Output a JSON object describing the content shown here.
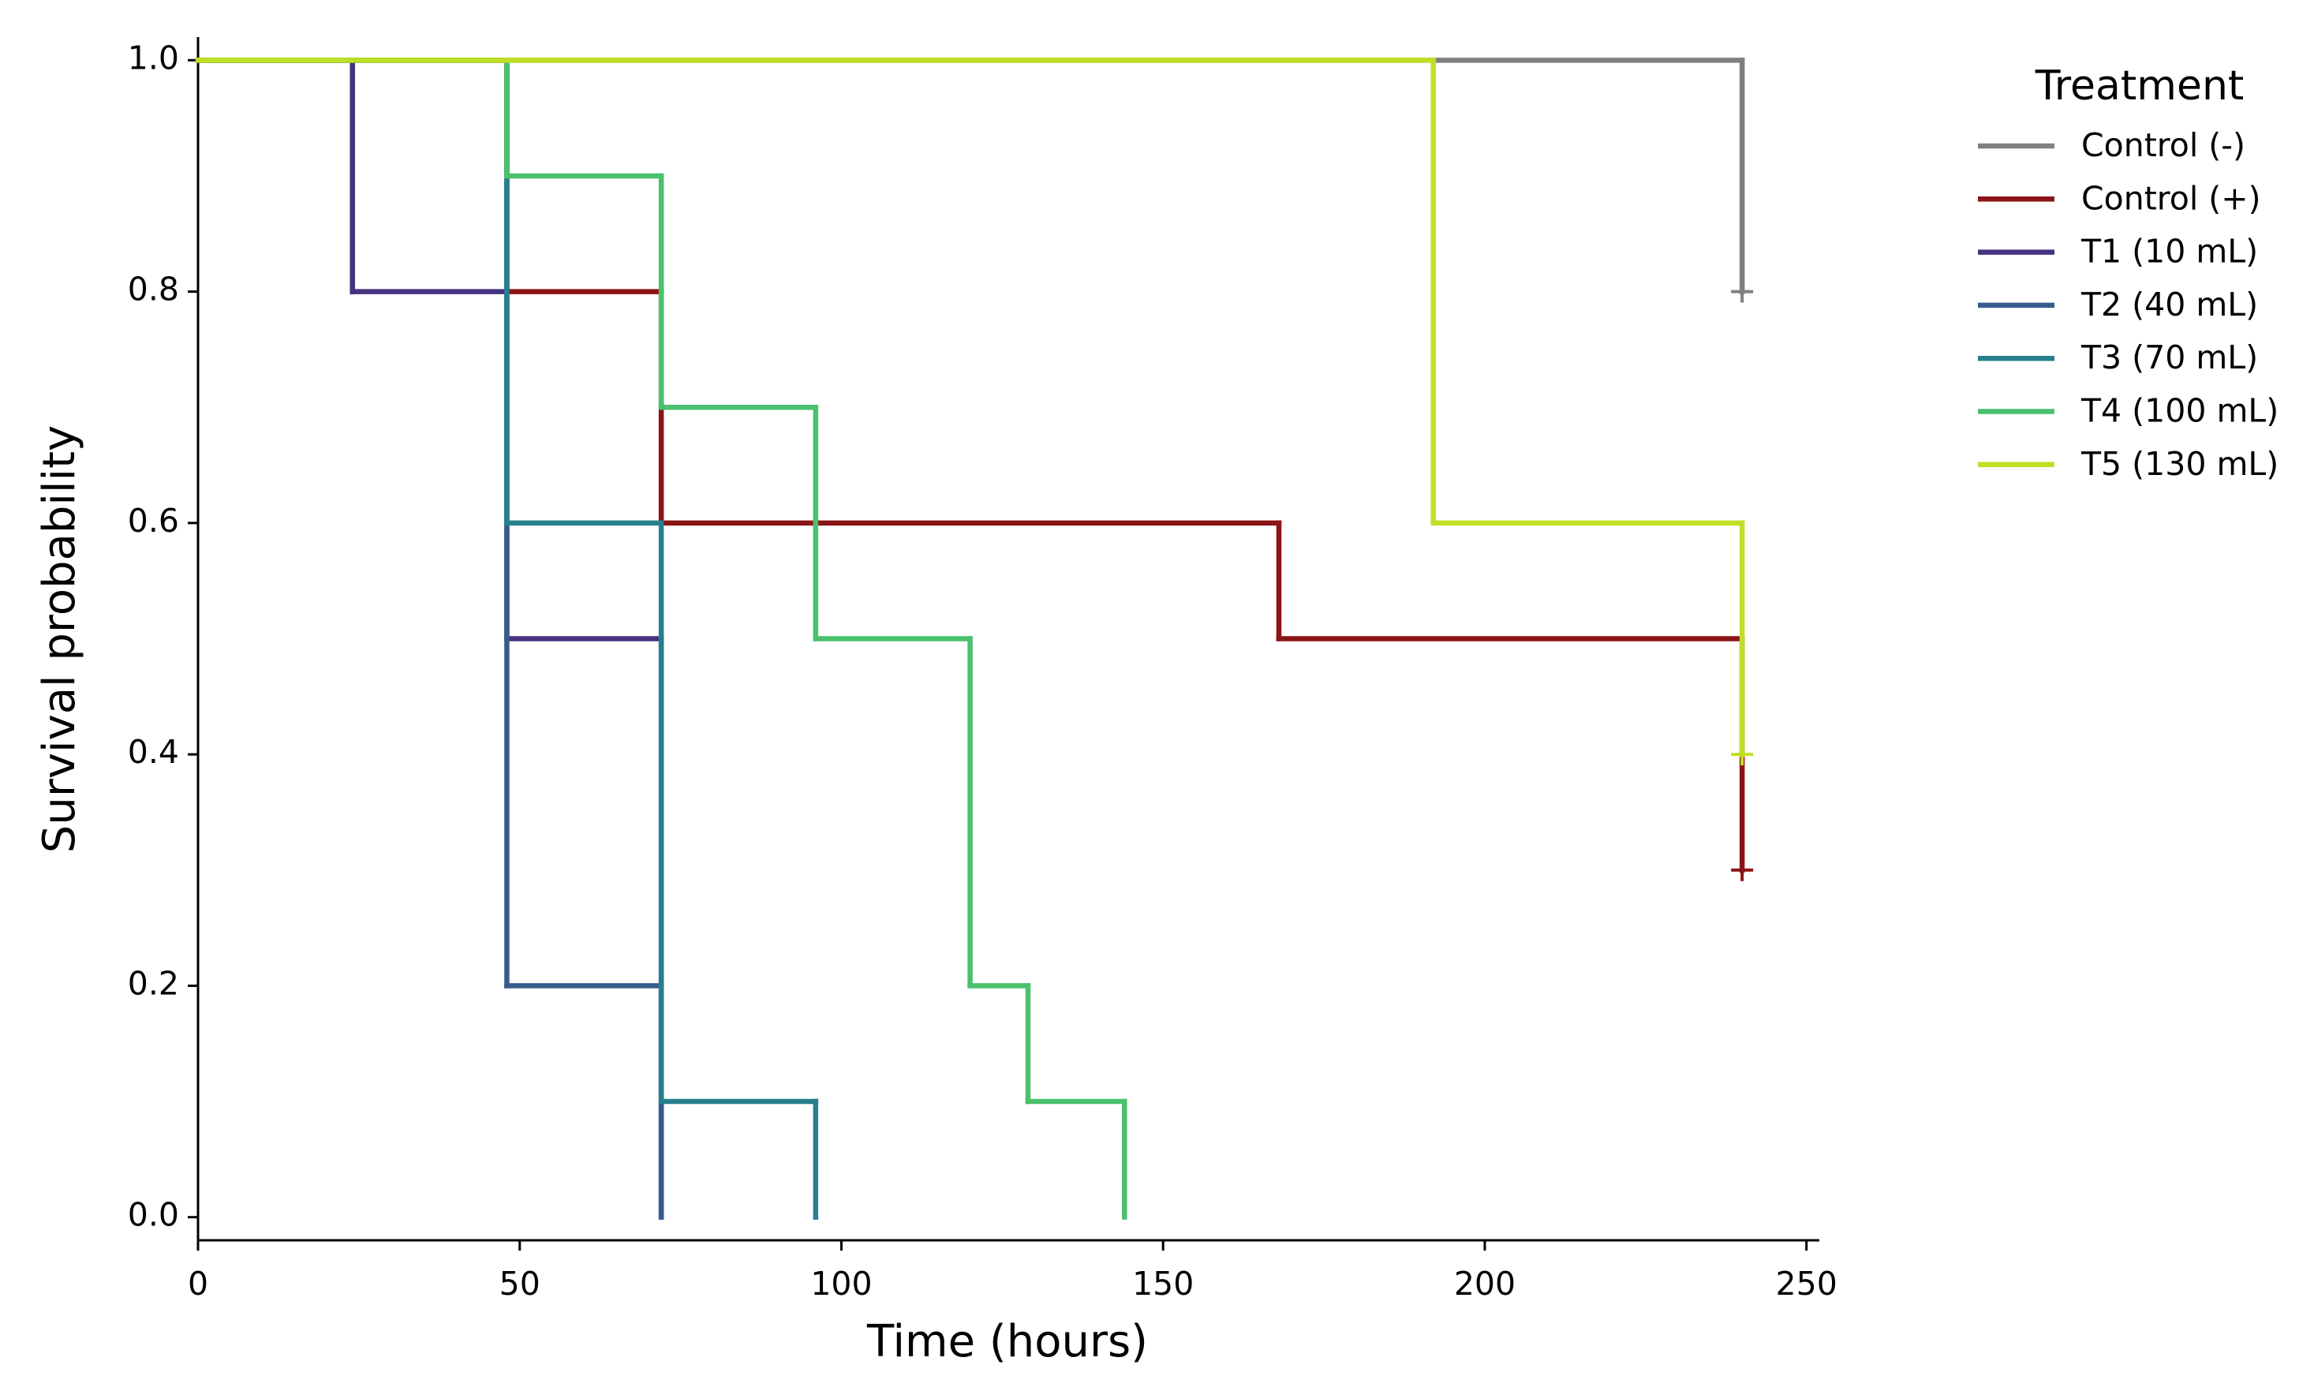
{
  "chart_data": {
    "type": "step",
    "xlabel": "Time (hours)",
    "ylabel": "Survival probability",
    "xlim": [
      0,
      252
    ],
    "ylim": [
      -0.02,
      1.02
    ],
    "xticks": [
      0,
      50,
      100,
      150,
      200,
      250
    ],
    "yticks": [
      {
        "value": 0,
        "label": "0.0"
      },
      {
        "value": 0.2,
        "label": "0.2"
      },
      {
        "value": 0.4,
        "label": "0.4"
      },
      {
        "value": 0.6,
        "label": "0.6"
      },
      {
        "value": 0.8,
        "label": "0.8"
      },
      {
        "value": 1,
        "label": "1.0"
      }
    ],
    "legend_title": "Treatment",
    "legend": "upper right outside",
    "series": [
      {
        "name": "Control (-)",
        "color": "#808080",
        "x": [
          0,
          240
        ],
        "values": [
          1.0,
          0.8
        ],
        "censor_x": [
          240
        ],
        "censor_values": [
          0.8
        ]
      },
      {
        "name": "Control (+)",
        "color": "#8b1414",
        "x": [
          0,
          48,
          72,
          168,
          240
        ],
        "values": [
          1.0,
          0.8,
          0.6,
          0.5,
          0.3
        ],
        "censor_x": [
          240
        ],
        "censor_values": [
          0.3
        ]
      },
      {
        "name": "T1 (10 mL)",
        "color": "#46327e",
        "x": [
          0,
          24,
          48,
          72
        ],
        "values": [
          1.0,
          0.8,
          0.5,
          0
        ]
      },
      {
        "name": "T2 (40 mL)",
        "color": "#365c8d",
        "x": [
          0,
          48,
          72
        ],
        "values": [
          1.0,
          0.2,
          0
        ]
      },
      {
        "name": "T3 (70 mL)",
        "color": "#277f8e",
        "x": [
          0,
          48,
          72,
          96
        ],
        "values": [
          1.0,
          0.6,
          0.1,
          0
        ]
      },
      {
        "name": "T4 (100 mL)",
        "color": "#4ac16d",
        "x": [
          0,
          48,
          72,
          96,
          120,
          129,
          144
        ],
        "values": [
          1.0,
          0.9,
          0.7,
          0.5,
          0.2,
          0.1,
          0
        ]
      },
      {
        "name": "T5 (130 mL)",
        "color": "#c0df25",
        "x": [
          0,
          192,
          240
        ],
        "values": [
          1.0,
          0.6,
          0.4
        ],
        "censor_x": [
          240
        ],
        "censor_values": [
          0.4
        ]
      }
    ]
  }
}
